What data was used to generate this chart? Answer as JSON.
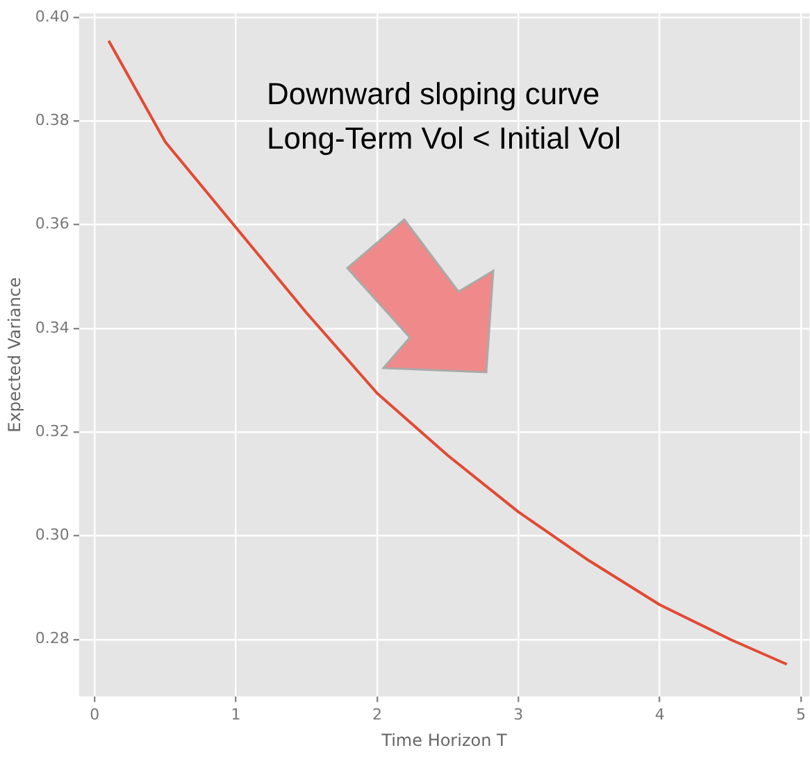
{
  "chart_data": {
    "type": "line",
    "xlabel": "Time Horizon T",
    "ylabel": "Expected Variance",
    "annotations": [
      "Downward sloping curve",
      "Long-Term Vol < Initial Vol"
    ],
    "x": [
      0.1,
      0.5,
      1,
      1.5,
      2,
      2.5,
      3,
      3.5,
      4,
      4.5,
      4.9
    ],
    "series": [
      {
        "color": "#e24a33",
        "values": [
          0.3955,
          0.376,
          0.3595,
          0.343,
          0.3275,
          0.3155,
          0.3046,
          0.2952,
          0.2867,
          0.28,
          0.2752
        ]
      }
    ],
    "xlim": [
      -0.11,
      5.06
    ],
    "xticks": [
      0,
      1,
      2,
      3,
      4,
      5
    ],
    "ylim": [
      0.269,
      0.4008
    ],
    "yticks": [
      {
        "value": 0.28,
        "label": "0.28"
      },
      {
        "value": 0.3,
        "label": "0.30"
      },
      {
        "value": 0.32,
        "label": "0.32"
      },
      {
        "value": 0.34,
        "label": "0.34"
      },
      {
        "value": 0.36,
        "label": "0.36"
      },
      {
        "value": 0.38,
        "label": "0.38"
      },
      {
        "value": 0.4,
        "label": "0.40"
      }
    ],
    "grid": true,
    "legend": false,
    "marker": "none",
    "line_style": "solid"
  }
}
